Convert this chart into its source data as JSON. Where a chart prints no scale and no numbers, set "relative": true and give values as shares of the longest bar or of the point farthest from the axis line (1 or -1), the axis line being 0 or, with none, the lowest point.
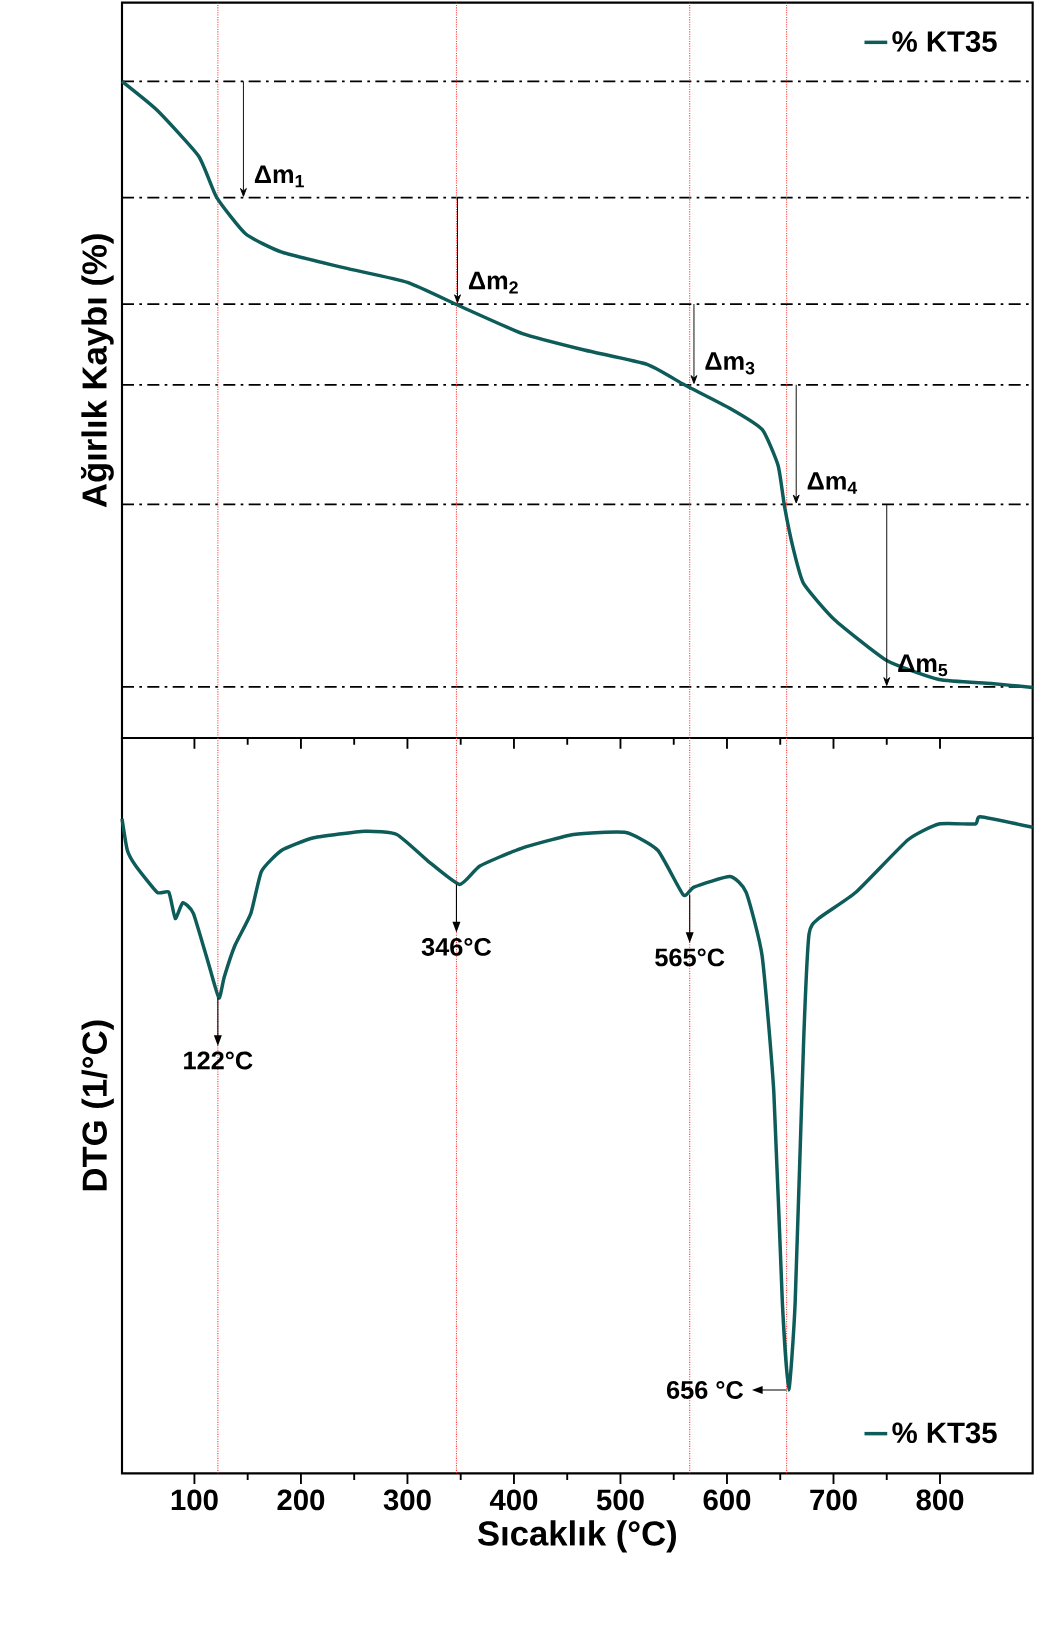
{
  "chart_data": [
    {
      "type": "line",
      "relative": true,
      "ylabel": "Ağırlık Kaybı (%)",
      "xlim": [
        32,
        887
      ],
      "xticks": [
        100,
        200,
        300,
        400,
        500,
        600,
        700,
        800
      ],
      "tick_labels": false,
      "legend": "top right",
      "x": [
        32,
        65,
        104,
        121,
        148,
        182,
        241,
        300,
        349,
        408,
        466,
        525,
        560,
        603,
        633,
        648,
        654,
        662,
        672,
        701,
        750,
        799,
        848,
        887
      ],
      "series": [
        {
          "name": "% KT35",
          "color": "#0d5c5a",
          "values": [
            1.0,
            0.956,
            0.886,
            0.823,
            0.768,
            0.74,
            0.716,
            0.694,
            0.658,
            0.616,
            0.591,
            0.569,
            0.538,
            0.502,
            0.47,
            0.415,
            0.353,
            0.29,
            0.235,
            0.18,
            0.118,
            0.089,
            0.083,
            0.077
          ]
        }
      ],
      "ref_lines": [
        {
          "axis": "y",
          "value": 1.0,
          "line_style": "dashed",
          "color": "#000000"
        },
        {
          "axis": "y",
          "value": 0.823,
          "line_style": "dashed",
          "color": "#000000"
        },
        {
          "axis": "y",
          "value": 0.661,
          "line_style": "dashed",
          "color": "#000000"
        },
        {
          "axis": "y",
          "value": 0.538,
          "line_style": "dashed",
          "color": "#000000"
        },
        {
          "axis": "y",
          "value": 0.356,
          "line_style": "dashed",
          "color": "#000000"
        },
        {
          "axis": "y",
          "value": 0.078,
          "line_style": "dashed",
          "color": "#000000"
        },
        {
          "axis": "x",
          "value": 122,
          "line_style": "dotted",
          "color": "#ff3333"
        },
        {
          "axis": "x",
          "value": 346,
          "line_style": "dotted",
          "color": "#ff3333"
        },
        {
          "axis": "x",
          "value": 565,
          "line_style": "dotted",
          "color": "#ff3333"
        },
        {
          "axis": "x",
          "value": 656,
          "line_style": "dotted",
          "color": "#ff3333"
        }
      ],
      "annotations": [
        {
          "text": "Δm$_{1}$",
          "x": 146,
          "y": 0.823
        },
        {
          "text": "Δm$_{2}$",
          "x": 347,
          "y": 0.661
        },
        {
          "text": "Δm$_{3}$",
          "x": 569,
          "y": 0.538
        },
        {
          "text": "Δm$_{4}$",
          "x": 665,
          "y": 0.356
        },
        {
          "text": "Δm$_{5}$",
          "x": 750,
          "y": 0.078
        }
      ]
    },
    {
      "type": "line",
      "relative": true,
      "xlabel": "Sıcaklık (°C)",
      "ylabel": "DTG (1/°C)",
      "xlim": [
        32,
        887
      ],
      "xticks": [
        100,
        200,
        300,
        400,
        500,
        600,
        700,
        800
      ],
      "tick_labels": "x",
      "legend": "bottom right",
      "x": [
        32,
        37,
        45,
        65,
        76,
        82,
        89,
        99,
        114,
        123,
        128,
        138,
        153,
        163,
        182,
        212,
        260,
        290,
        319,
        349,
        368,
        407,
        456,
        505,
        535,
        559,
        569,
        603,
        618,
        633,
        644,
        652,
        658,
        664,
        672,
        677,
        686,
        721,
        770,
        799,
        833,
        838,
        887
      ],
      "series": [
        {
          "name": "% KT35",
          "color": "#0d5c5a",
          "values": [
            0.997,
            0.949,
            0.925,
            0.885,
            0.885,
            0.845,
            0.869,
            0.853,
            0.772,
            0.724,
            0.756,
            0.804,
            0.853,
            0.917,
            0.949,
            0.968,
            0.978,
            0.973,
            0.933,
            0.897,
            0.925,
            0.952,
            0.973,
            0.976,
            0.949,
            0.881,
            0.893,
            0.909,
            0.885,
            0.788,
            0.58,
            0.26,
            0.127,
            0.26,
            0.66,
            0.821,
            0.845,
            0.885,
            0.965,
            0.989,
            0.989,
            1.0,
            0.984
          ]
        }
      ],
      "ref_lines": [
        {
          "axis": "x",
          "value": 122,
          "line_style": "dotted",
          "color": "#ff3333"
        },
        {
          "axis": "x",
          "value": 346,
          "line_style": "dotted",
          "color": "#ff3333"
        },
        {
          "axis": "x",
          "value": 565,
          "line_style": "dotted",
          "color": "#ff3333"
        },
        {
          "axis": "x",
          "value": 656,
          "line_style": "dotted",
          "color": "#ff3333"
        }
      ],
      "annotations": [
        {
          "text": "122°C",
          "x": 122,
          "y": 0.724
        },
        {
          "text": "346°C",
          "x": 346,
          "y": 0.897
        },
        {
          "text": "565°C",
          "x": 565,
          "y": 0.881
        },
        {
          "text": "656 °C",
          "x": 656,
          "y": 0.127
        }
      ]
    }
  ]
}
